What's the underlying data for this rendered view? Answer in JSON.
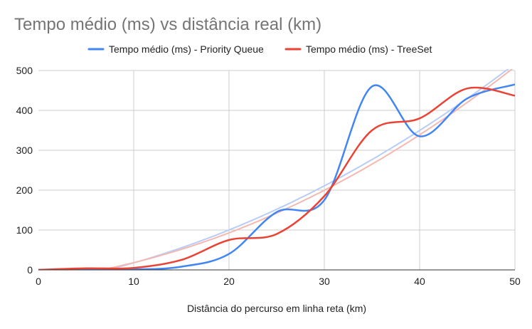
{
  "chart_data": {
    "type": "line",
    "title": "Tempo médio (ms) vs distância real (km)",
    "xlabel": "Distância do percurso em linha reta (km)",
    "ylabel": "",
    "xlim": [
      0,
      50
    ],
    "ylim": [
      0,
      500
    ],
    "xticks": [
      0,
      10,
      20,
      30,
      40,
      50
    ],
    "yticks": [
      0,
      100,
      200,
      300,
      400,
      500
    ],
    "grid": true,
    "legend_position": "top",
    "smooth": true,
    "series": [
      {
        "name": "Tempo médio (ms) - Priority Queue",
        "color": "#4285f4",
        "trendline_color": "#b7cdf8",
        "x": [
          0,
          5,
          10,
          15,
          20,
          25,
          30,
          35,
          40,
          45,
          50
        ],
        "y": [
          0,
          0,
          1,
          8,
          40,
          145,
          175,
          460,
          335,
          430,
          465
        ]
      },
      {
        "name": "Tempo médio (ms) - TreeSet",
        "color": "#ea4335",
        "trendline_color": "#f5b8b1",
        "x": [
          0,
          5,
          10,
          15,
          20,
          25,
          30,
          35,
          40,
          45,
          50
        ],
        "y": [
          0,
          4,
          5,
          25,
          75,
          90,
          185,
          350,
          380,
          455,
          437
        ]
      }
    ]
  }
}
